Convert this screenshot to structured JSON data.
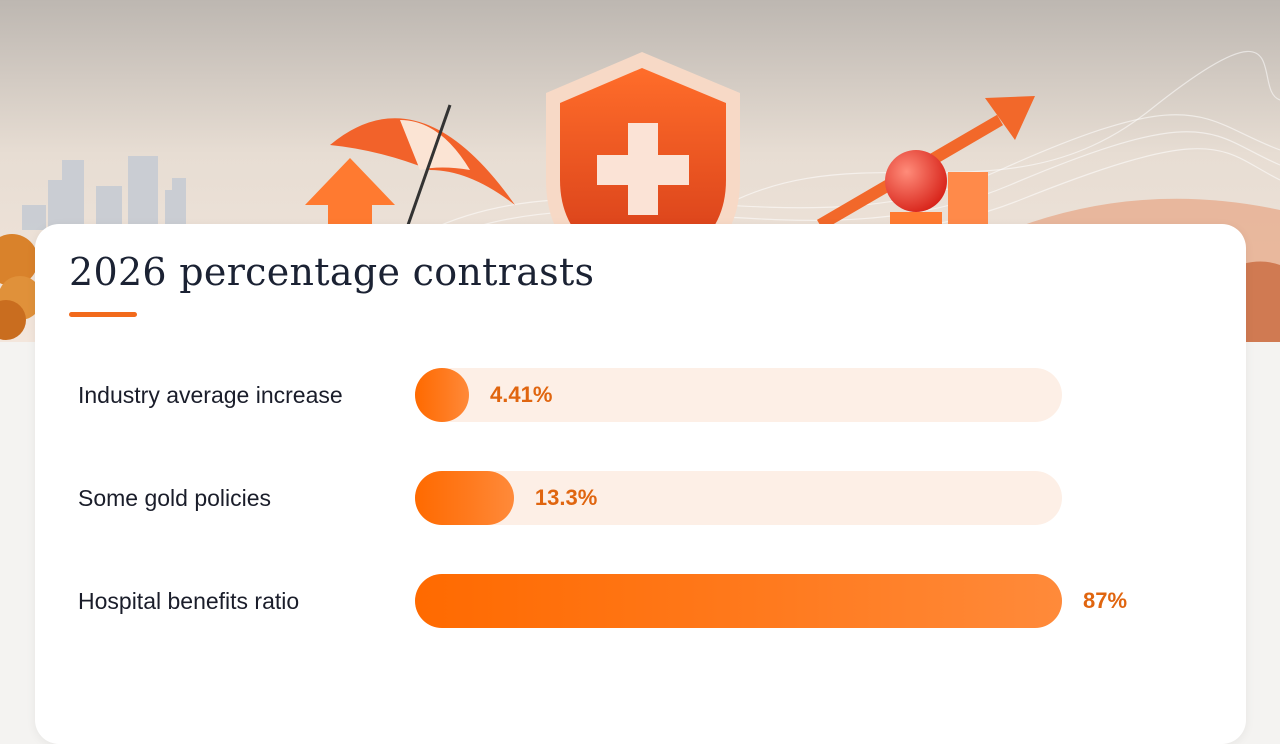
{
  "card": {
    "title": "2026 percentage contrasts"
  },
  "colors": {
    "accent": "#f26a1b",
    "bar_fill": "#ff6f0f",
    "track": "#fdefe6",
    "value_text": "#e0650f",
    "title_text": "#1b2233"
  },
  "hero_icons": [
    "city-skyline-icon",
    "up-arrow-icon",
    "umbrella-icon",
    "medical-shield-icon",
    "growth-arrow-icon",
    "red-ball-icon",
    "bar-blocks-icon",
    "autumn-tree-icon"
  ],
  "chart_data": {
    "type": "bar",
    "orientation": "horizontal",
    "categories": [
      "Industry average increase",
      "Some gold policies",
      "Hospital benefits ratio"
    ],
    "values": [
      4.41,
      13.3,
      87
    ],
    "value_labels": [
      "4.41%",
      "13.3%",
      "87%"
    ],
    "xlim": [
      0,
      87
    ],
    "grid": false
  }
}
